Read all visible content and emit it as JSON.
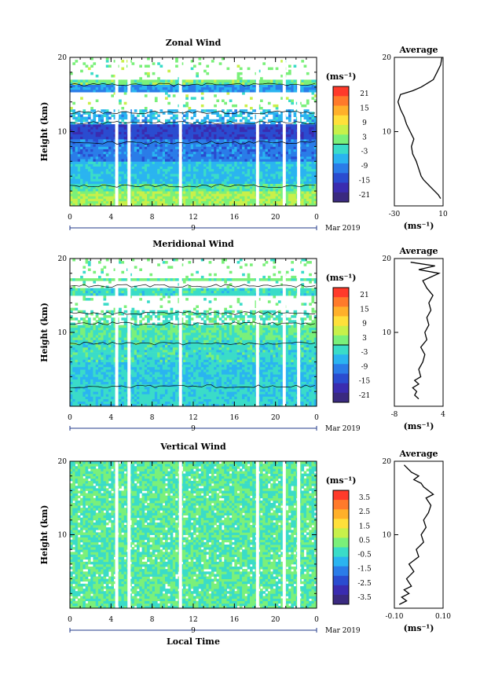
{
  "chart_data": [
    {
      "type": "heatmap",
      "title": "Zonal Wind",
      "ylabel": "Height (km)",
      "xlabel": "",
      "ylim": [
        0,
        20
      ],
      "xlim": [
        0,
        24
      ],
      "x_ticks": [
        "0",
        "4",
        "8",
        "12",
        "16",
        "20",
        "0"
      ],
      "y_ticks": [
        "20",
        "10"
      ],
      "date_label": "9",
      "month_label": "Mar 2019",
      "colorbar": {
        "unit": "(ms⁻¹)",
        "ticks": [
          "21",
          "15",
          "9",
          "3",
          "-3",
          "-9",
          "-15",
          "-21"
        ],
        "colors": [
          "#ff3a2a",
          "#ff7a2a",
          "#ffb02a",
          "#ffe03a",
          "#c8f04a",
          "#7af07a",
          "#3adcc8",
          "#2ab4f0",
          "#2a7ce8",
          "#2a4cd0",
          "#3a2cb0",
          "#3a2a80"
        ],
        "contour_level": "0"
      },
      "white_gaps_hours": [
        4.4,
        5.6,
        10.6,
        18.1,
        20.7,
        22.1
      ],
      "bands": [
        {
          "height_km": [
            0,
            2
          ],
          "value": 4
        },
        {
          "height_km": [
            2,
            3
          ],
          "value": 0
        },
        {
          "height_km": [
            3,
            6
          ],
          "value": -5
        },
        {
          "height_km": [
            6,
            9
          ],
          "value": -10
        },
        {
          "height_km": [
            9,
            11
          ],
          "value": -15
        },
        {
          "height_km": [
            11,
            13
          ],
          "value": -6
        },
        {
          "height_km": [
            15.5,
            16.5
          ],
          "value": -8
        },
        {
          "height_km": [
            16.5,
            17
          ],
          "value": 2
        }
      ],
      "average_profile": {
        "title": "Average",
        "unit": "(ms⁻¹)",
        "x_ticks": [
          "-30",
          "10"
        ],
        "xlim": [
          -30,
          10
        ],
        "y_ticks": [
          "20",
          "10"
        ],
        "x": [
          8,
          6,
          3,
          0,
          -3,
          -6,
          -8,
          -10,
          -12,
          -15,
          -16,
          -14,
          -17,
          -20,
          -22,
          -25,
          -27,
          -25,
          -15,
          -8,
          -3,
          2,
          5,
          8,
          9
        ],
        "y": [
          1,
          1.5,
          2,
          2.5,
          3,
          3.5,
          4,
          5,
          6,
          7,
          8,
          9,
          10,
          11,
          12,
          13,
          14,
          15,
          15.5,
          16,
          16.5,
          17,
          18,
          19,
          20
        ]
      }
    },
    {
      "type": "heatmap",
      "title": "Meridional Wind",
      "ylabel": "Height (km)",
      "xlabel": "",
      "ylim": [
        0,
        20
      ],
      "xlim": [
        0,
        24
      ],
      "x_ticks": [
        "0",
        "4",
        "8",
        "12",
        "16",
        "20",
        "0"
      ],
      "y_ticks": [
        "20",
        "10"
      ],
      "date_label": "9",
      "month_label": "Mar 2019",
      "colorbar": {
        "unit": "(ms⁻¹)",
        "ticks": [
          "21",
          "15",
          "9",
          "3",
          "-3",
          "-9",
          "-15",
          "-21"
        ],
        "colors": [
          "#ff3a2a",
          "#ff7a2a",
          "#ffb02a",
          "#ffe03a",
          "#c8f04a",
          "#7af07a",
          "#3adcc8",
          "#2ab4f0",
          "#2a7ce8",
          "#2a4cd0",
          "#3a2cb0",
          "#3a2a80"
        ],
        "contour_level": "0"
      },
      "white_gaps_hours": [
        4.4,
        5.6,
        10.6,
        18.1,
        20.7,
        22.1
      ],
      "bands": [
        {
          "height_km": [
            0,
            3
          ],
          "value": -3
        },
        {
          "height_km": [
            3,
            6
          ],
          "value": -4
        },
        {
          "height_km": [
            6,
            9
          ],
          "value": -2
        },
        {
          "height_km": [
            9,
            12
          ],
          "value": 0
        },
        {
          "height_km": [
            12,
            13
          ],
          "value": -1
        },
        {
          "height_km": [
            15,
            16
          ],
          "value": -2
        },
        {
          "height_km": [
            17,
            17.5
          ],
          "value": 1
        }
      ],
      "average_profile": {
        "title": "Average",
        "unit": "(ms⁻¹)",
        "x_ticks": [
          "-8",
          "4"
        ],
        "xlim": [
          -8,
          4
        ],
        "y_ticks": [
          "20",
          "10"
        ],
        "x": [
          -2,
          -3,
          -2.5,
          -3.5,
          -2,
          -3,
          -1.5,
          -2,
          -1,
          -0.5,
          -1.5,
          0,
          -0.5,
          0.5,
          0,
          1,
          0.5,
          1.5,
          0,
          -1,
          1,
          3,
          -2,
          2,
          -4
        ],
        "y": [
          1,
          1.5,
          2,
          2.5,
          3,
          3.5,
          4,
          5,
          6,
          7,
          8,
          9,
          10,
          11,
          12,
          13,
          14,
          15,
          16,
          17,
          17.5,
          18,
          18.5,
          19,
          19.5
        ]
      }
    },
    {
      "type": "heatmap",
      "title": "Vertical Wind",
      "ylabel": "Height (km)",
      "xlabel": "Local Time",
      "ylim": [
        0,
        20
      ],
      "xlim": [
        0,
        24
      ],
      "x_ticks": [
        "0",
        "4",
        "8",
        "12",
        "16",
        "20",
        "0"
      ],
      "y_ticks": [
        "20",
        "10"
      ],
      "date_label": "9",
      "month_label": "Mar 2019",
      "colorbar": {
        "unit": "(ms⁻¹)",
        "ticks": [
          "3.5",
          "2.5",
          "1.5",
          "0.5",
          "-0.5",
          "-1.5",
          "-2.5",
          "-3.5"
        ],
        "colors": [
          "#ff3a2a",
          "#ff7a2a",
          "#ffb02a",
          "#ffe03a",
          "#c8f04a",
          "#7af07a",
          "#3adcc8",
          "#2ab4f0",
          "#2a7ce8",
          "#2a4cd0",
          "#3a2cb0",
          "#3a2a80"
        ],
        "contour_level": ""
      },
      "white_gaps_hours": [
        4.4,
        5.6,
        10.6,
        18.1,
        20.7,
        22.1
      ],
      "bands": [
        {
          "height_km": [
            0,
            20
          ],
          "value": 0
        }
      ],
      "average_profile": {
        "title": "Average",
        "unit": "(ms⁻¹)",
        "x_ticks": [
          "-0.10",
          "0.10"
        ],
        "xlim": [
          -0.1,
          0.1
        ],
        "y_ticks": [
          "20",
          "10"
        ],
        "x": [
          -0.08,
          -0.05,
          -0.07,
          -0.04,
          -0.06,
          -0.03,
          -0.05,
          -0.02,
          -0.04,
          0.0,
          -0.01,
          0.02,
          0.01,
          0.03,
          0.02,
          0.04,
          0.05,
          0.03,
          0.06,
          0.04,
          0.02,
          0.01,
          -0.02,
          0.0,
          -0.03,
          -0.06
        ],
        "y": [
          0.5,
          1,
          1.5,
          2,
          2.5,
          3,
          4,
          5,
          6,
          7,
          8,
          9,
          10,
          11,
          12,
          13,
          14,
          15,
          15.5,
          16,
          16.5,
          17,
          17.5,
          18,
          18.5,
          19.5
        ]
      }
    }
  ]
}
